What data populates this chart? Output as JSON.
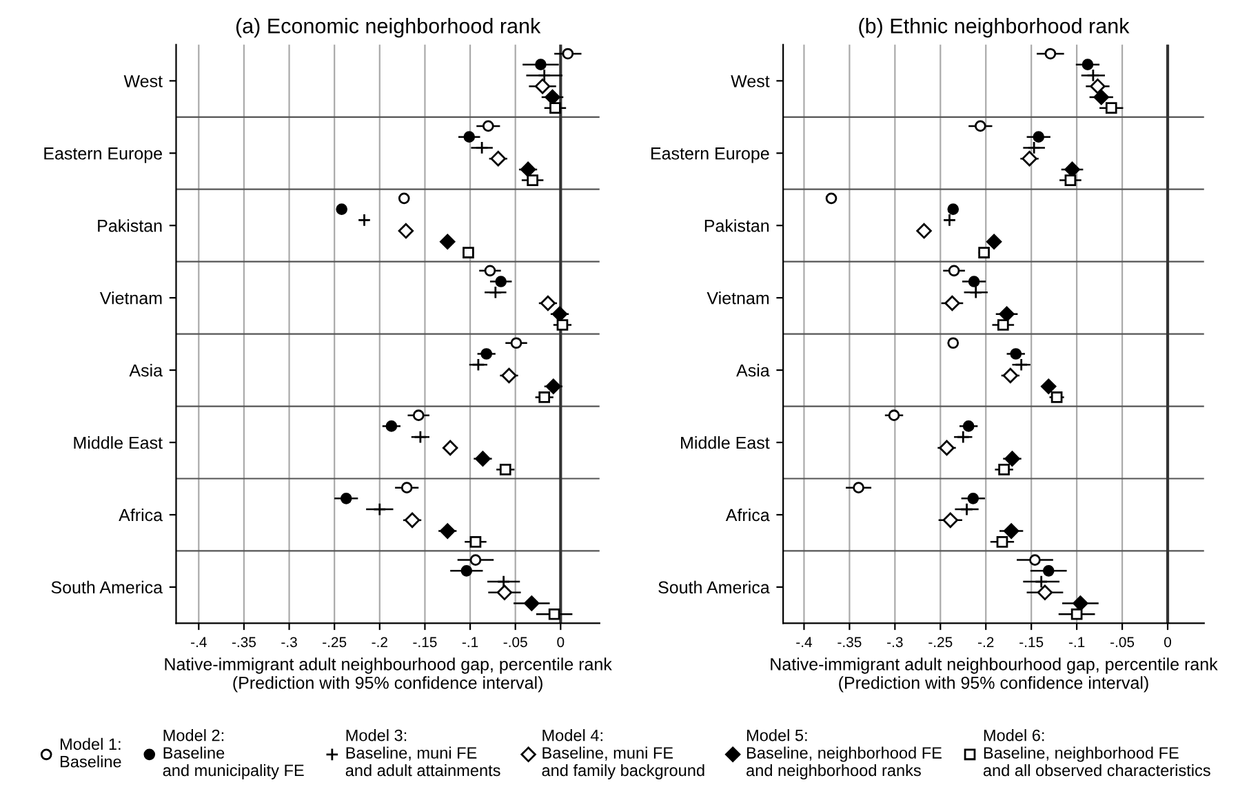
{
  "chart_data": [
    {
      "type": "scatter",
      "title": "(a) Economic neighborhood rank",
      "xlabel": "Native-immigrant adult neighbourhood gap, percentile rank\n(Prediction with 95% confidence interval)",
      "categories": [
        "West",
        "Eastern Europe",
        "Pakistan",
        "Vietnam",
        "Asia",
        "Middle East",
        "Africa",
        "South America"
      ],
      "orientation": "horizontal",
      "xlim": [
        -0.425,
        0.043
      ],
      "xticks": [
        {
          "value": -0.4,
          "label": "-.4"
        },
        {
          "value": -0.35,
          "label": "-.35"
        },
        {
          "value": -0.3,
          "label": "-.3"
        },
        {
          "value": -0.25,
          "label": "-.25"
        },
        {
          "value": -0.2,
          "label": "-.2"
        },
        {
          "value": -0.15,
          "label": "-.15"
        },
        {
          "value": -0.1,
          "label": "-.1"
        },
        {
          "value": -0.05,
          "label": "-.05"
        },
        {
          "value": 0,
          "label": "0"
        }
      ],
      "grid": true,
      "legend": "bottom",
      "ref_lines": [
        {
          "axis": "x",
          "value": 0,
          "color": "#333333"
        }
      ],
      "series": [
        {
          "name": "Model 1:\nBaseline",
          "color": "#000000",
          "marker": "circle-open",
          "values": [
            0.008,
            -0.08,
            -0.173,
            -0.078,
            -0.049,
            -0.157,
            -0.17,
            -0.094
          ],
          "errors": [
            0.015,
            0.013,
            0.005,
            0.012,
            0.012,
            0.012,
            0.013,
            0.02
          ]
        },
        {
          "name": "Model 2:\nBaseline\nand municipality FE",
          "color": "#000000",
          "marker": "circle",
          "values": [
            -0.022,
            -0.101,
            -0.242,
            -0.066,
            -0.082,
            -0.187,
            -0.237,
            -0.104
          ],
          "errors": [
            0.02,
            0.012,
            0.005,
            0.012,
            0.01,
            0.01,
            0.013,
            0.018
          ]
        },
        {
          "name": "Model 3:\nBaseline, muni FE\nand adult attainments",
          "color": "#000000",
          "marker": "cross",
          "values": [
            -0.018,
            -0.087,
            -0.217,
            -0.072,
            -0.091,
            -0.155,
            -0.2,
            -0.063
          ],
          "errors": [
            0.02,
            0.012,
            0.005,
            0.012,
            0.01,
            0.01,
            0.015,
            0.018
          ]
        },
        {
          "name": "Model 4:\nBaseline, muni FE\nand family background",
          "color": "#000000",
          "marker": "diamond-open",
          "values": [
            -0.02,
            -0.069,
            -0.171,
            -0.014,
            -0.057,
            -0.122,
            -0.164,
            -0.062
          ],
          "errors": [
            0.015,
            0.01,
            0.005,
            0.01,
            0.01,
            0.008,
            0.01,
            0.018
          ]
        },
        {
          "name": "Model 5:\nBaseline, neighborhood FE\nand neighborhood ranks",
          "color": "#000000",
          "marker": "diamond",
          "values": [
            -0.009,
            -0.036,
            -0.125,
            -0.001,
            -0.008,
            -0.086,
            -0.125,
            -0.032
          ],
          "errors": [
            0.012,
            0.01,
            0.006,
            0.01,
            0.01,
            0.01,
            0.01,
            0.02
          ]
        },
        {
          "name": "Model 6:\nBaseline, neighborhood FE\nand all observed characteristics",
          "color": "#000000",
          "marker": "square-open",
          "values": [
            -0.006,
            -0.031,
            -0.102,
            0.002,
            -0.018,
            -0.061,
            -0.094,
            -0.007
          ],
          "errors": [
            0.012,
            0.012,
            0.006,
            0.01,
            0.01,
            0.01,
            0.012,
            0.02
          ]
        }
      ]
    },
    {
      "type": "scatter",
      "title": "(b) Ethnic neighborhood rank",
      "xlabel": "Native-immigrant adult neighbourhood gap, percentile rank\n(Prediction with 95% confidence interval)",
      "categories": [
        "West",
        "Eastern Europe",
        "Pakistan",
        "Vietnam",
        "Asia",
        "Middle East",
        "Africa",
        "South America"
      ],
      "orientation": "horizontal",
      "xlim": [
        -0.423,
        0.04
      ],
      "xticks": [
        {
          "value": -0.4,
          "label": "-.4"
        },
        {
          "value": -0.35,
          "label": "-.35"
        },
        {
          "value": -0.3,
          "label": "-.3"
        },
        {
          "value": -0.25,
          "label": "-.25"
        },
        {
          "value": -0.2,
          "label": "-.2"
        },
        {
          "value": -0.15,
          "label": "-.15"
        },
        {
          "value": -0.1,
          "label": "-.1"
        },
        {
          "value": -0.05,
          "label": "-.05"
        },
        {
          "value": 0,
          "label": "0"
        }
      ],
      "grid": true,
      "ref_lines": [
        {
          "axis": "x",
          "value": 0,
          "color": "#333333"
        }
      ],
      "series": [
        {
          "color": "#000000",
          "marker": "circle-open",
          "values": [
            -0.129,
            -0.206,
            -0.37,
            -0.235,
            -0.236,
            -0.301,
            -0.34,
            -0.146
          ],
          "errors": [
            0.015,
            0.013,
            0.005,
            0.012,
            0.006,
            0.01,
            0.014,
            0.02
          ]
        },
        {
          "color": "#000000",
          "marker": "circle",
          "values": [
            -0.088,
            -0.142,
            -0.236,
            -0.213,
            -0.167,
            -0.219,
            -0.214,
            -0.131
          ],
          "errors": [
            0.013,
            0.013,
            0.005,
            0.013,
            0.01,
            0.01,
            0.013,
            0.02
          ]
        },
        {
          "color": "#000000",
          "marker": "cross",
          "values": [
            -0.082,
            -0.147,
            -0.24,
            -0.211,
            -0.161,
            -0.225,
            -0.221,
            -0.139
          ],
          "errors": [
            0.013,
            0.012,
            0.006,
            0.013,
            0.01,
            0.01,
            0.013,
            0.02
          ]
        },
        {
          "color": "#000000",
          "marker": "diamond-open",
          "values": [
            -0.077,
            -0.152,
            -0.268,
            -0.237,
            -0.173,
            -0.243,
            -0.239,
            -0.135
          ],
          "errors": [
            0.013,
            0.01,
            0.005,
            0.012,
            0.01,
            0.01,
            0.013,
            0.02
          ]
        },
        {
          "color": "#000000",
          "marker": "diamond",
          "values": [
            -0.073,
            -0.105,
            -0.191,
            -0.177,
            -0.131,
            -0.171,
            -0.172,
            -0.096
          ],
          "errors": [
            0.013,
            0.012,
            0.006,
            0.012,
            0.008,
            0.01,
            0.013,
            0.02
          ]
        },
        {
          "color": "#000000",
          "marker": "square-open",
          "values": [
            -0.062,
            -0.107,
            -0.202,
            -0.181,
            -0.122,
            -0.18,
            -0.182,
            -0.1
          ],
          "errors": [
            0.013,
            0.012,
            0.006,
            0.012,
            0.008,
            0.01,
            0.013,
            0.02
          ]
        }
      ]
    }
  ]
}
